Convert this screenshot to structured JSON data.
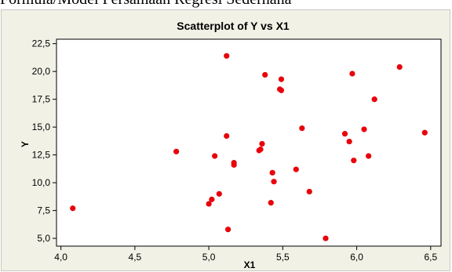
{
  "header_text": "Formula/Model Persamaan Regresi Sederhana",
  "chart_data": {
    "type": "scatter",
    "title": "Scatterplot of Y vs X1",
    "xlabel": "X1",
    "ylabel": "Y",
    "xlim": [
      3.97,
      6.57
    ],
    "ylim": [
      4.3,
      22.9
    ],
    "xticks": [
      4.0,
      4.5,
      5.0,
      5.5,
      6.0,
      6.5
    ],
    "xtick_labels": [
      "4,0",
      "4,5",
      "5,0",
      "5,5",
      "6,0",
      "6,5"
    ],
    "yticks": [
      5.0,
      7.5,
      10.0,
      12.5,
      15.0,
      17.5,
      20.0,
      22.5
    ],
    "ytick_labels": [
      "5,0",
      "7,5",
      "10,0",
      "12,5",
      "15,0",
      "17,5",
      "20,0",
      "22,5"
    ],
    "grid": false,
    "marker_color": "#e8000b",
    "points": [
      {
        "x": 4.08,
        "y": 7.7
      },
      {
        "x": 4.78,
        "y": 12.8
      },
      {
        "x": 5.0,
        "y": 8.1
      },
      {
        "x": 5.02,
        "y": 8.5
      },
      {
        "x": 5.04,
        "y": 12.4
      },
      {
        "x": 5.07,
        "y": 9.0
      },
      {
        "x": 5.12,
        "y": 21.4
      },
      {
        "x": 5.12,
        "y": 14.2
      },
      {
        "x": 5.13,
        "y": 5.8
      },
      {
        "x": 5.17,
        "y": 11.8
      },
      {
        "x": 5.17,
        "y": 11.6
      },
      {
        "x": 5.34,
        "y": 12.9
      },
      {
        "x": 5.35,
        "y": 13.0
      },
      {
        "x": 5.36,
        "y": 13.5
      },
      {
        "x": 5.38,
        "y": 19.7
      },
      {
        "x": 5.42,
        "y": 8.2
      },
      {
        "x": 5.43,
        "y": 10.9
      },
      {
        "x": 5.44,
        "y": 10.1
      },
      {
        "x": 5.48,
        "y": 18.4
      },
      {
        "x": 5.49,
        "y": 19.3
      },
      {
        "x": 5.49,
        "y": 18.3
      },
      {
        "x": 5.59,
        "y": 11.2
      },
      {
        "x": 5.63,
        "y": 14.9
      },
      {
        "x": 5.68,
        "y": 9.2
      },
      {
        "x": 5.79,
        "y": 5.0
      },
      {
        "x": 5.92,
        "y": 14.4
      },
      {
        "x": 5.95,
        "y": 13.7
      },
      {
        "x": 5.97,
        "y": 19.8
      },
      {
        "x": 5.98,
        "y": 12.0
      },
      {
        "x": 6.05,
        "y": 14.8
      },
      {
        "x": 6.08,
        "y": 12.4
      },
      {
        "x": 6.12,
        "y": 17.5
      },
      {
        "x": 6.29,
        "y": 20.4
      },
      {
        "x": 6.46,
        "y": 14.5
      }
    ]
  }
}
